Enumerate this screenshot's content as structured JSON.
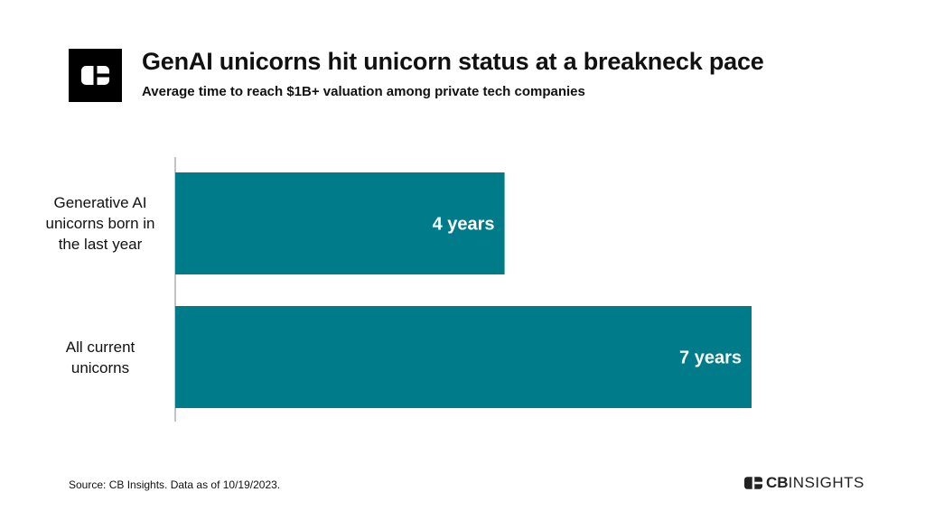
{
  "header": {
    "title": "GenAI unicorns hit unicorn status at a breakneck pace",
    "subtitle": "Average time to reach $1B+ valuation among private tech companies"
  },
  "chart_data": {
    "type": "bar",
    "orientation": "horizontal",
    "title": "GenAI unicorns hit unicorn status at a breakneck pace",
    "subtitle": "Average time to reach $1B+ valuation among private tech companies",
    "categories": [
      "Generative AI unicorns born in the last year",
      "All current unicorns"
    ],
    "values": [
      4,
      7
    ],
    "data_labels": [
      "4 years",
      "7 years"
    ],
    "unit": "years",
    "bar_color": "#007B8A",
    "xlim": [
      0,
      7
    ],
    "grid": false,
    "legend": "none"
  },
  "category_lines": [
    [
      "Generative AI",
      "unicorns born in",
      "the last year"
    ],
    [
      "All current",
      "unicorns"
    ]
  ],
  "footer": {
    "source": "Source: CB Insights. Data as of 10/19/2023.",
    "brand_cb": "CB",
    "brand_insights": "INSIGHTS"
  },
  "icons": {
    "header_logo": "cb-logo-icon",
    "footer_logo": "cb-insights-logo-icon"
  }
}
